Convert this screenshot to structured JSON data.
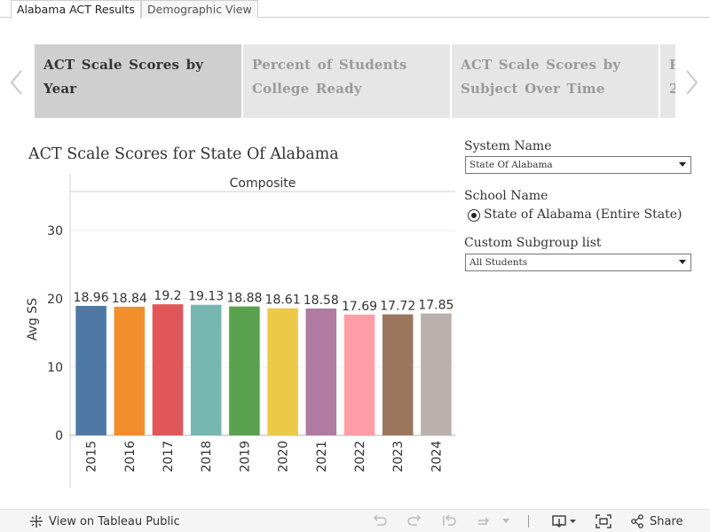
{
  "tabs": [
    {
      "label": "Alabama ACT Results",
      "active": true
    },
    {
      "label": "Demographic View",
      "active": false
    }
  ],
  "story_points": [
    {
      "label": "ACT Scale Scores by Year",
      "active": true
    },
    {
      "label": "Percent of Students College Ready",
      "active": false
    },
    {
      "label": "ACT Scale Scores by Subject Over Time",
      "active": false
    },
    {
      "label": "P 2",
      "active": false
    }
  ],
  "chart_title": "ACT Scale Scores for State Of Alabama",
  "chart_data": {
    "type": "bar",
    "panel_header": "Composite",
    "categories": [
      "2015",
      "2016",
      "2017",
      "2018",
      "2019",
      "2020",
      "2021",
      "2022",
      "2023",
      "2024"
    ],
    "values": [
      18.96,
      18.84,
      19.2,
      19.13,
      18.88,
      18.61,
      18.58,
      17.69,
      17.72,
      17.85
    ],
    "value_labels": [
      "18.96",
      "18.84",
      "19.2",
      "19.13",
      "18.88",
      "18.61",
      "18.58",
      "17.69",
      "17.72",
      "17.85"
    ],
    "colors": [
      "#4e79a7",
      "#f28e2b",
      "#e15759",
      "#76b7b2",
      "#59a14f",
      "#edc948",
      "#b07aa1",
      "#ff9da7",
      "#9c755f",
      "#bab0ac"
    ],
    "ylabel": "Avg SS",
    "yticks": [
      0,
      10,
      20,
      30
    ],
    "ylim": [
      0,
      35
    ],
    "grid": true
  },
  "controls": {
    "system_name_label": "System Name",
    "system_name_value": "State Of Alabama",
    "school_name_label": "School Name",
    "school_name_option": "State of Alabama (Entire State)",
    "subgroup_label": "Custom Subgroup list",
    "subgroup_value": "All Students"
  },
  "toolbar": {
    "view_on_tableau": "View on Tableau Public",
    "share": "Share"
  },
  "icons": {
    "prev": "chevron-left-icon",
    "next": "chevron-right-icon",
    "tableau": "tableau-logo-icon",
    "undo": "undo-icon",
    "redo": "redo-icon",
    "revert": "revert-icon",
    "refresh": "refresh-icon",
    "download": "download-icon",
    "fullscreen": "fullscreen-icon",
    "share": "share-icon"
  }
}
